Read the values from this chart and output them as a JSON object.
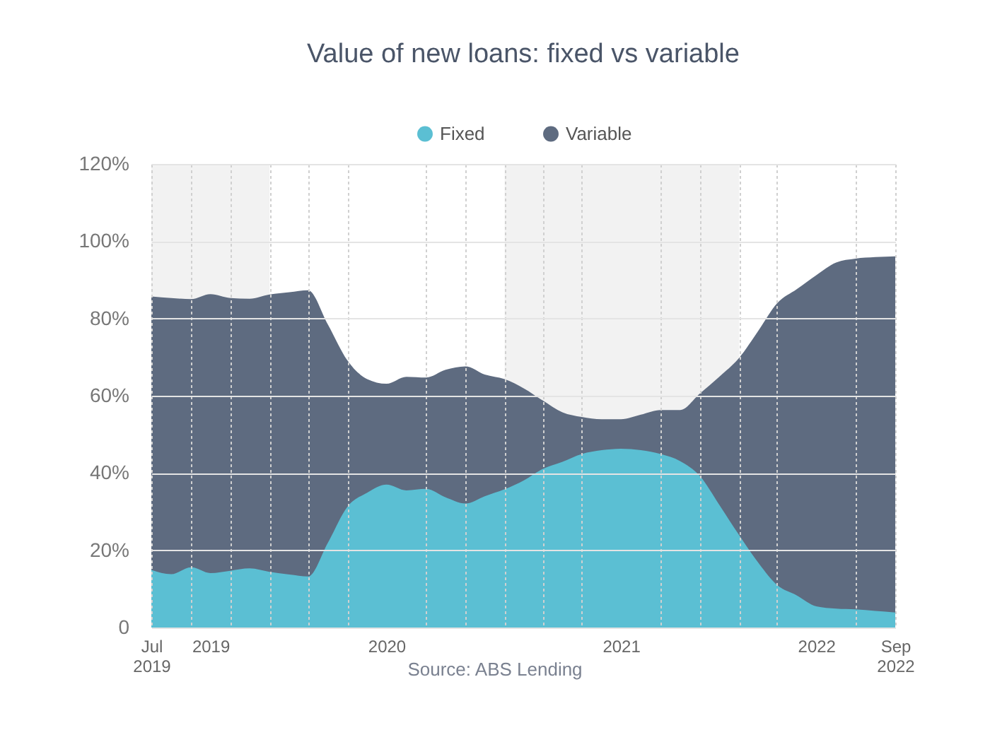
{
  "chart_data": {
    "type": "area",
    "title": "Value of new loans: fixed vs variable",
    "x": [
      "2019-07",
      "2019-08",
      "2019-09",
      "2019-10",
      "2019-11",
      "2019-12",
      "2020-01",
      "2020-02",
      "2020-03",
      "2020-04",
      "2020-05",
      "2020-06",
      "2020-07",
      "2020-08",
      "2020-09",
      "2020-10",
      "2020-11",
      "2020-12",
      "2021-01",
      "2021-02",
      "2021-03",
      "2021-04",
      "2021-05",
      "2021-06",
      "2021-07",
      "2021-08",
      "2021-09",
      "2021-10",
      "2021-11",
      "2021-12",
      "2022-01",
      "2022-02",
      "2022-03",
      "2022-04",
      "2022-05",
      "2022-06",
      "2022-07",
      "2022-08",
      "2022-09"
    ],
    "series": [
      {
        "name": "Fixed",
        "color": "#5bbfd3",
        "values": [
          14.9,
          13.8,
          15.6,
          14.1,
          14.7,
          15.3,
          14.4,
          13.7,
          13.2,
          22.0,
          31.2,
          34.9,
          37.0,
          35.5,
          35.9,
          33.7,
          32.1,
          34.0,
          35.8,
          38.2,
          41.0,
          42.9,
          44.9,
          45.9,
          46.3,
          45.9,
          44.9,
          43.1,
          39.2,
          31.8,
          23.9,
          16.5,
          11.0,
          8.3,
          5.5,
          4.9,
          4.7,
          4.3,
          3.9
        ]
      },
      {
        "name": "Variable",
        "color": "#5e6b80",
        "values": [
          85.7,
          85.3,
          85.0,
          86.3,
          85.3,
          85.1,
          86.2,
          86.8,
          87.3,
          78.4,
          69.2,
          64.3,
          63.1,
          64.9,
          64.7,
          66.7,
          67.6,
          65.5,
          64.3,
          61.8,
          58.8,
          55.7,
          54.5,
          53.9,
          53.9,
          55.1,
          56.3,
          56.3,
          60.6,
          64.9,
          69.8,
          77.1,
          83.9,
          87.6,
          91.2,
          94.5,
          95.5,
          95.9,
          96.1
        ]
      }
    ],
    "xlim": [
      "2019-07",
      "2022-09"
    ],
    "xticks": [
      {
        "value": "2019-07",
        "label": "Jul\n2019"
      },
      {
        "value": "2019-09",
        "label": null
      },
      {
        "value": "2019-10",
        "label": "2019"
      },
      {
        "value": "2019-11",
        "label": null
      },
      {
        "value": "2020-01",
        "label": null
      },
      {
        "value": "2020-03",
        "label": null
      },
      {
        "value": "2020-05",
        "label": null
      },
      {
        "value": "2020-07",
        "label": "2020"
      },
      {
        "value": "2020-09",
        "label": null
      },
      {
        "value": "2020-11",
        "label": null
      },
      {
        "value": "2021-01",
        "label": null
      },
      {
        "value": "2021-03",
        "label": null
      },
      {
        "value": "2021-05",
        "label": null
      },
      {
        "value": "2021-07",
        "label": "2021"
      },
      {
        "value": "2021-09",
        "label": null
      },
      {
        "value": "2021-11",
        "label": null
      },
      {
        "value": "2022-01",
        "label": null
      },
      {
        "value": "2022-03",
        "label": null
      },
      {
        "value": "2022-05",
        "label": "2022"
      },
      {
        "value": "2022-07",
        "label": null
      },
      {
        "value": "2022-09",
        "label": "Sep\n2022"
      }
    ],
    "ylim": [
      0,
      120
    ],
    "yticks": [
      {
        "value": 0,
        "label": "0"
      },
      {
        "value": 20,
        "label": "20%"
      },
      {
        "value": 40,
        "label": "40%"
      },
      {
        "value": 60,
        "label": "60%"
      },
      {
        "value": 80,
        "label": "80%"
      },
      {
        "value": 100,
        "label": "100%"
      },
      {
        "value": 120,
        "label": "120%"
      }
    ],
    "bands": [
      {
        "axis": "x",
        "from": "2019-07",
        "to": "2020-01",
        "color": "#f2f2f2"
      },
      {
        "axis": "x",
        "from": "2021-01",
        "to": "2022-01",
        "color": "#f2f2f2"
      }
    ],
    "grid": true,
    "legend": "top",
    "annotations": [
      "Source: ABS Lending"
    ]
  }
}
